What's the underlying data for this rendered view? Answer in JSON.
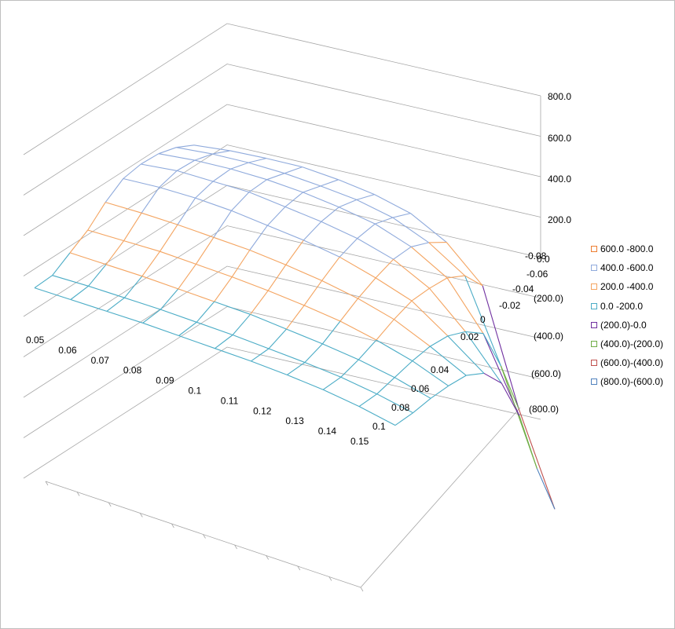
{
  "chart_data": {
    "type": "surface",
    "title": "",
    "x_ticks": [
      "0.05",
      "0.06",
      "0.07",
      "0.08",
      "0.09",
      "0.1",
      "0.11",
      "0.12",
      "0.13",
      "0.14",
      "0.15"
    ],
    "y_ticks": [
      "-0.08",
      "-0.06",
      "-0.04",
      "-0.02",
      "0",
      "0.02",
      "0.04",
      "0.06",
      "0.08",
      "0.1"
    ],
    "z_ticks": [
      {
        "label": "800.0",
        "value": 800,
        "color": "#000000"
      },
      {
        "label": "600.0",
        "value": 600,
        "color": "#000000"
      },
      {
        "label": "400.0",
        "value": 400,
        "color": "#000000"
      },
      {
        "label": "200.0",
        "value": 200,
        "color": "#000000"
      },
      {
        "label": "0.0",
        "value": 0,
        "color": "#000000"
      },
      {
        "label": "(200.0)",
        "value": -200,
        "color": "#ff0000"
      },
      {
        "label": "(400.0)",
        "value": -400,
        "color": "#ff0000"
      },
      {
        "label": "(600.0)",
        "value": -600,
        "color": "#ff0000"
      },
      {
        "label": "(800.0)",
        "value": -800,
        "color": "#ff0000"
      }
    ],
    "zlim": [
      -800,
      800
    ],
    "grid": true,
    "legend_position": "right",
    "bands": [
      {
        "label": "600.0 -800.0",
        "min": 600,
        "max": 800,
        "color": "#ed7d31"
      },
      {
        "label": "400.0 -600.0",
        "min": 400,
        "max": 600,
        "color": "#8faadc"
      },
      {
        "label": "200.0 -400.0",
        "min": 200,
        "max": 400,
        "color": "#f4a460"
      },
      {
        "label": "0.0 -200.0",
        "min": 0,
        "max": 200,
        "color": "#4bacc6"
      },
      {
        "label": "(200.0)-0.0",
        "min": -200,
        "max": 0,
        "color": "#7030a0"
      },
      {
        "label": "(400.0)-(200.0)",
        "min": -400,
        "max": -200,
        "color": "#70ad47"
      },
      {
        "label": "(600.0)-(400.0)",
        "min": -600,
        "max": -400,
        "color": "#c0504d"
      },
      {
        "label": "(800.0)-(600.0)",
        "min": -800,
        "max": -600,
        "color": "#4f81bd"
      }
    ],
    "z_values": [
      [
        140,
        160,
        230,
        300,
        395,
        470,
        500,
        510,
        500,
        470
      ],
      [
        135,
        160,
        225,
        300,
        395,
        480,
        520,
        530,
        520,
        495
      ],
      [
        130,
        155,
        220,
        300,
        390,
        480,
        520,
        540,
        530,
        510
      ],
      [
        125,
        150,
        210,
        290,
        380,
        470,
        520,
        540,
        530,
        520
      ],
      [
        115,
        140,
        200,
        280,
        370,
        450,
        500,
        530,
        520,
        510
      ],
      [
        105,
        130,
        190,
        265,
        350,
        430,
        480,
        510,
        505,
        490
      ],
      [
        95,
        115,
        170,
        245,
        325,
        400,
        450,
        480,
        470,
        450
      ],
      [
        80,
        100,
        150,
        220,
        290,
        350,
        400,
        420,
        400,
        360
      ],
      [
        60,
        80,
        125,
        180,
        240,
        290,
        310,
        320,
        290,
        200
      ],
      [
        30,
        50,
        90,
        130,
        160,
        170,
        150,
        100,
        -100,
        -350
      ],
      [
        -10,
        10,
        40,
        60,
        70,
        40,
        -50,
        -250,
        -550,
        -790
      ]
    ]
  },
  "legend": {
    "items": [
      {
        "label": "600.0 -800.0",
        "border": "#ed7d31"
      },
      {
        "label": "400.0 -600.0",
        "border": "#8faadc"
      },
      {
        "label": "200.0 -400.0",
        "border": "#f4a460"
      },
      {
        "label": "0.0 -200.0",
        "border": "#4bacc6"
      },
      {
        "label": "(200.0)-0.0",
        "border": "#7030a0"
      },
      {
        "label": "(400.0)-(200.0)",
        "border": "#70ad47"
      },
      {
        "label": "(600.0)-(400.0)",
        "border": "#c0504d"
      },
      {
        "label": "(800.0)-(600.0)",
        "border": "#4f81bd"
      }
    ]
  }
}
